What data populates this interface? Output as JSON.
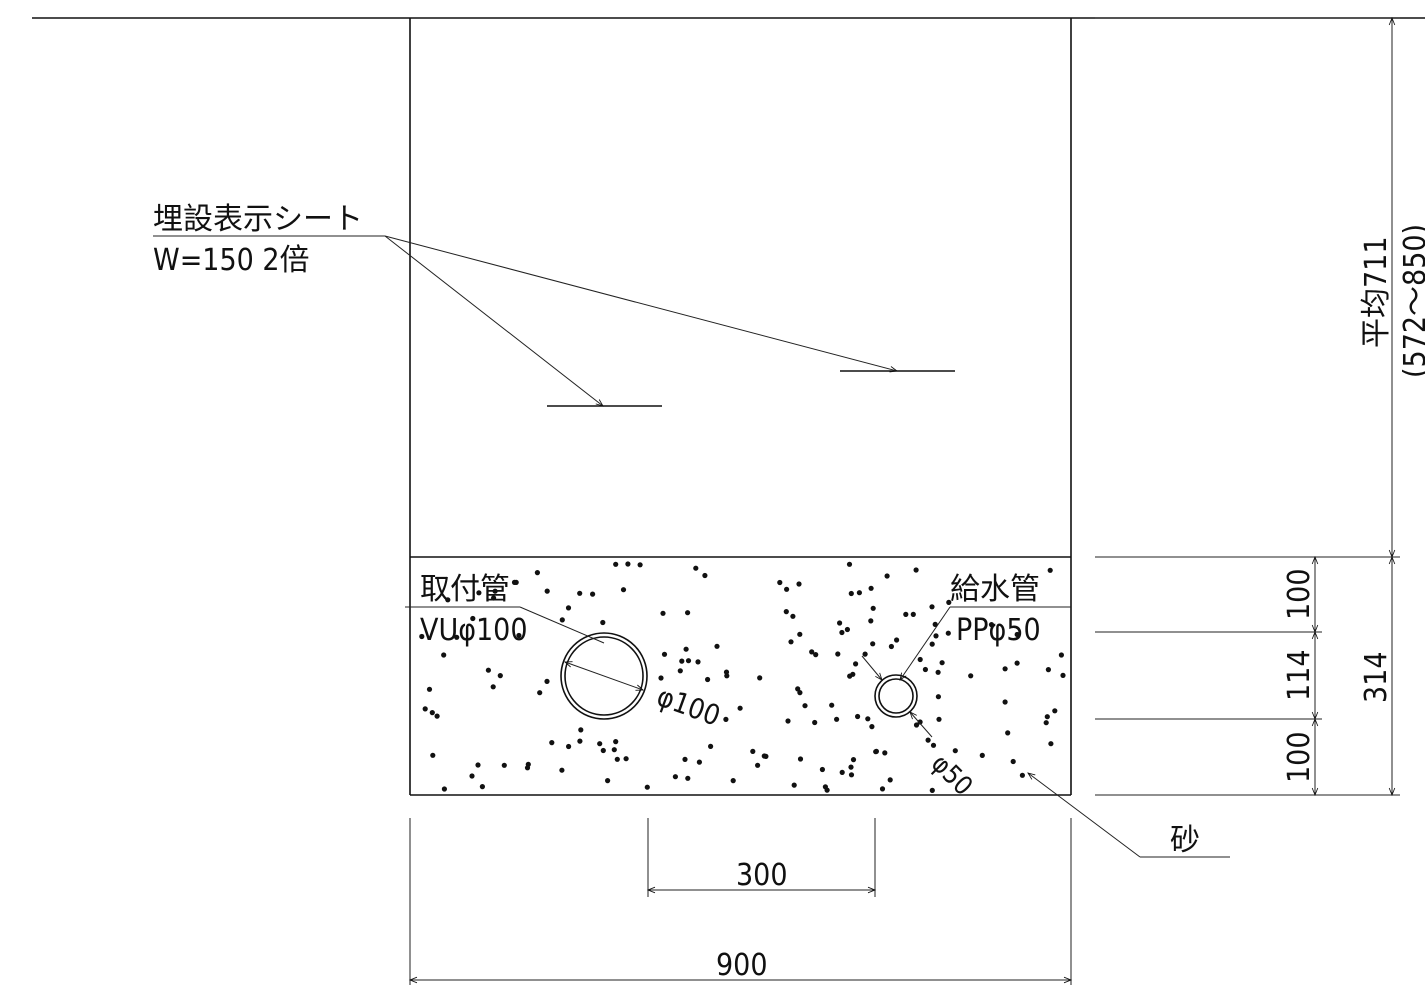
{
  "labels": {
    "sheet_label": "埋設表示シート",
    "sheet_size": "W=150 2倍",
    "connection_pipe_label": "取付管",
    "connection_pipe_spec": "VUφ100",
    "water_pipe_label": "給水管",
    "water_pipe_spec": "PPφ50",
    "sand_label": "砂"
  },
  "dimensions": {
    "width_total": "900",
    "pipe_spacing": "300",
    "dia_large": "φ100",
    "dia_small": "φ50",
    "bed_top": "100",
    "bed_mid": "114",
    "bed_bottom": "100",
    "bed_total": "314",
    "depth_avg": "平均711",
    "depth_range": "(572～850)"
  },
  "colors": {
    "line": "#111111",
    "background": "#ffffff"
  }
}
